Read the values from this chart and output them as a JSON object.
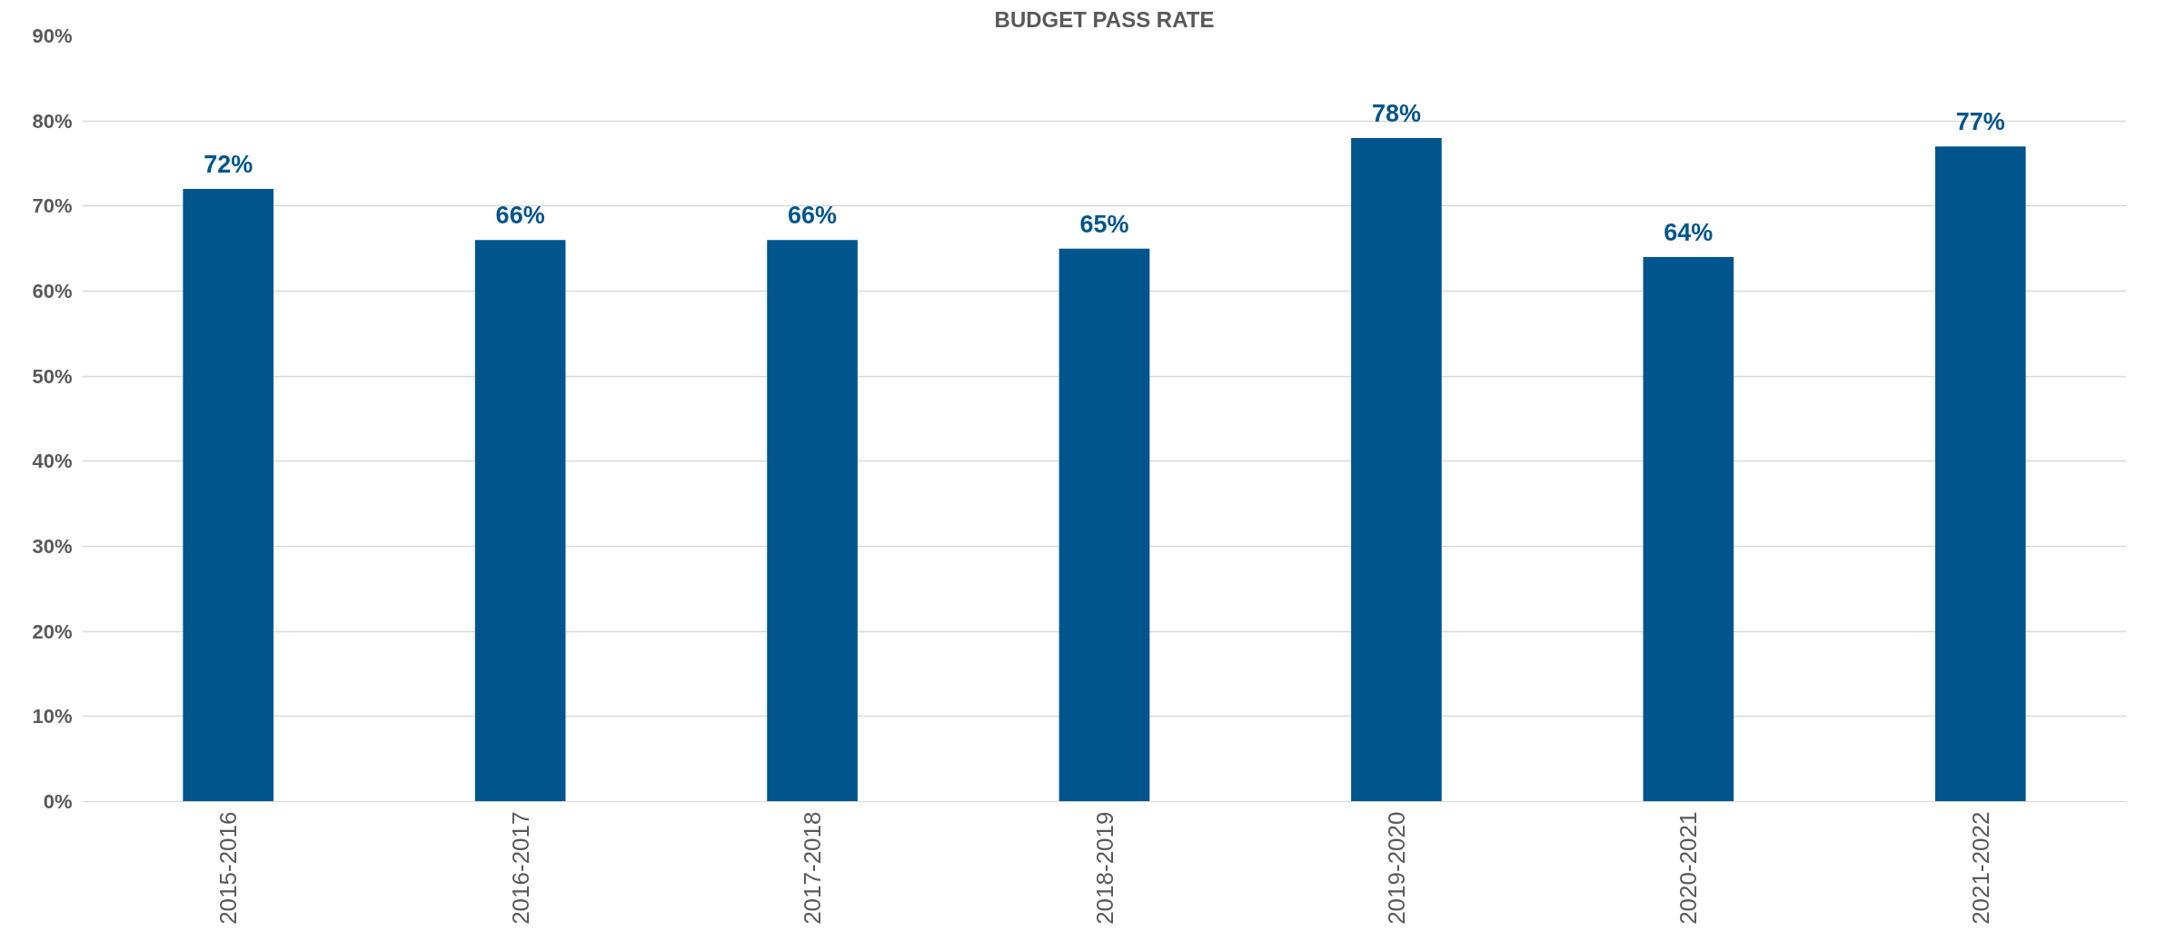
{
  "chart_data": {
    "type": "bar",
    "title": "BUDGET PASS RATE",
    "categories": [
      "2015-2016",
      "2016-2017",
      "2017-2018",
      "2018-2019",
      "2019-2020",
      "2020-2021",
      "2021-2022"
    ],
    "values": [
      72,
      66,
      66,
      65,
      78,
      64,
      77
    ],
    "value_labels": [
      "72%",
      "66%",
      "66%",
      "65%",
      "78%",
      "64%",
      "77%"
    ],
    "color": "#00558c",
    "ylim": [
      0,
      90
    ],
    "yticks": [
      {
        "value": 0,
        "label": "0%"
      },
      {
        "value": 10,
        "label": "10%"
      },
      {
        "value": 20,
        "label": "20%"
      },
      {
        "value": 30,
        "label": "30%"
      },
      {
        "value": 40,
        "label": "40%"
      },
      {
        "value": 50,
        "label": "50%"
      },
      {
        "value": 60,
        "label": "60%"
      },
      {
        "value": 70,
        "label": "70%"
      },
      {
        "value": 80,
        "label": "80%"
      },
      {
        "value": 90,
        "label": "90%"
      }
    ],
    "grid": "y"
  }
}
